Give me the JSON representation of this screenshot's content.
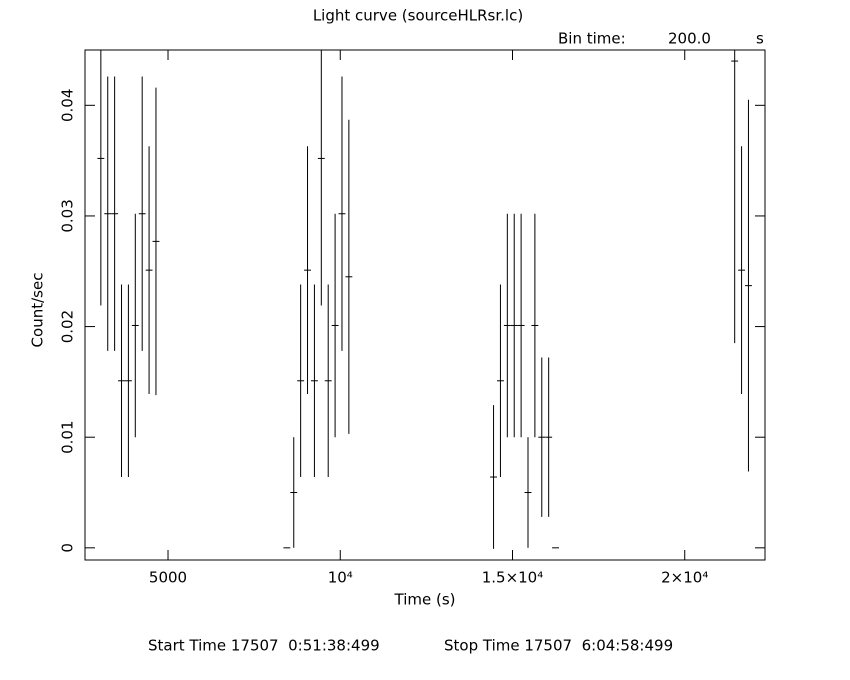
{
  "chart_data": {
    "type": "errorbar",
    "title": "Light curve (sourceHLRsr.lc)",
    "bin_label": "Bin time:",
    "bin_value": "200.0",
    "bin_unit": "s",
    "x_label": "Time (s)",
    "y_label": "Count/sec",
    "start_time": "Start Time 17507  0:51:38:499",
    "stop_time": "Stop Time 17507  6:04:58:499",
    "bin_width": 200,
    "x": [
      3050,
      3250,
      3450,
      3650,
      3850,
      4050,
      4250,
      4450,
      4650,
      8450,
      8650,
      8850,
      9050,
      9250,
      9450,
      9650,
      9850,
      10050,
      10250,
      14450,
      14650,
      14850,
      15050,
      15250,
      15450,
      15650,
      15850,
      16050,
      16250,
      21450,
      21650,
      21850
    ],
    "values": [
      0.0352,
      0.0302,
      0.0302,
      0.0151,
      0.0151,
      0.0201,
      0.0302,
      0.0251,
      0.0277,
      0,
      0.005,
      0.0151,
      0.0251,
      0.0151,
      0.0352,
      0.0151,
      0.0201,
      0.0302,
      0.0245,
      0.0064,
      0.0151,
      0.0201,
      0.0201,
      0.0201,
      0.005,
      0.0201,
      0.01,
      0.01,
      0,
      0.044,
      0.0251,
      0.0237
    ],
    "errors": [
      0.0133,
      0.0124,
      0.0124,
      0.0087,
      0.0087,
      0.0101,
      0.0124,
      0.0112,
      0.0139,
      0,
      0.005,
      0.0087,
      0.0112,
      0.0087,
      0.0133,
      0.0087,
      0.0101,
      0.0124,
      0.0142,
      0.0065,
      0.0087,
      0.0101,
      0.0101,
      0.0101,
      0.005,
      0.0101,
      0.0072,
      0.0072,
      0,
      0.0255,
      0.0112,
      0.0168
    ],
    "color": "#000000",
    "xlim": [
      2590,
      22330
    ],
    "ylim": [
      -0.0011,
      0.045
    ],
    "xticks": [
      5000,
      {
        "value": 10000,
        "label": "10⁴"
      },
      {
        "value": 15000,
        "label": "1.5×10⁴"
      },
      {
        "value": 20000,
        "label": "2×10⁴"
      }
    ],
    "yticks": [
      0,
      0.01,
      0.02,
      0.03,
      0.04
    ]
  }
}
